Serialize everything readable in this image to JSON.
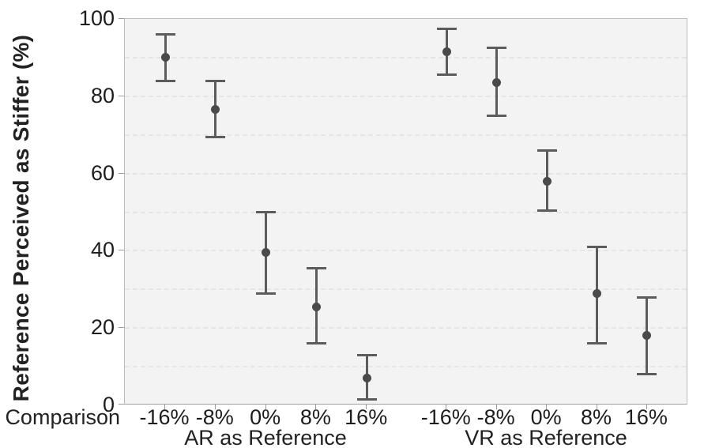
{
  "chart_data": {
    "type": "scatter",
    "error_bars": true,
    "title": "",
    "ylabel": "Reference Perceived as Stiffer (%)",
    "xlabel": "Comparison",
    "ylim": [
      0,
      100
    ],
    "yticks": [
      0,
      20,
      40,
      60,
      80,
      100
    ],
    "ytick_labels": [
      "0",
      "20",
      "40",
      "60",
      "80",
      "100"
    ],
    "gridline_step": 10,
    "grid_style": "dashed",
    "legend": "none",
    "categories": [
      "-16%",
      "-8%",
      "0%",
      "8%",
      "16%"
    ],
    "groups": [
      {
        "label": "AR as Reference",
        "categories": [
          "-16%",
          "-8%",
          "0%",
          "8%",
          "16%"
        ],
        "means": [
          90,
          76.5,
          39.5,
          25.5,
          7
        ],
        "ci_low": [
          84,
          69.5,
          29,
          16,
          1.5
        ],
        "ci_high": [
          96,
          84,
          50,
          35.5,
          13
        ]
      },
      {
        "label": "VR as Reference",
        "categories": [
          "-16%",
          "-8%",
          "0%",
          "8%",
          "16%"
        ],
        "means": [
          91.5,
          83.5,
          58,
          29,
          18
        ],
        "ci_low": [
          85.5,
          75,
          50.5,
          16,
          8
        ],
        "ci_high": [
          97.5,
          92.5,
          66,
          41,
          28
        ]
      }
    ],
    "colors": {
      "point": "#4a4a4c",
      "error_bar": "#5c5c5c",
      "plot_background": "#f2f3f2",
      "outer_background": "#ffffff",
      "gridline": "#e4e5e4",
      "axis_line": "#a8aca9",
      "text": "#1d1d1d"
    }
  }
}
